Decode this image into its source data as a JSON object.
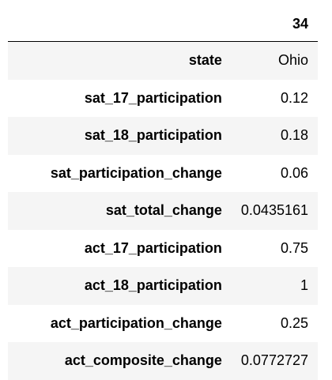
{
  "dataframe": {
    "column_header": "34",
    "rows": [
      {
        "label": "state",
        "value": "Ohio"
      },
      {
        "label": "sat_17_participation",
        "value": "0.12"
      },
      {
        "label": "sat_18_participation",
        "value": "0.18"
      },
      {
        "label": "sat_participation_change",
        "value": "0.06"
      },
      {
        "label": "sat_total_change",
        "value": "0.0435161"
      },
      {
        "label": "act_17_participation",
        "value": "0.75"
      },
      {
        "label": "act_18_participation",
        "value": "1"
      },
      {
        "label": "act_participation_change",
        "value": "0.25"
      },
      {
        "label": "act_composite_change",
        "value": "0.0772727"
      }
    ],
    "colors": {
      "stripe": "#f5f5f5",
      "background": "#ffffff",
      "text": "#000000"
    }
  }
}
